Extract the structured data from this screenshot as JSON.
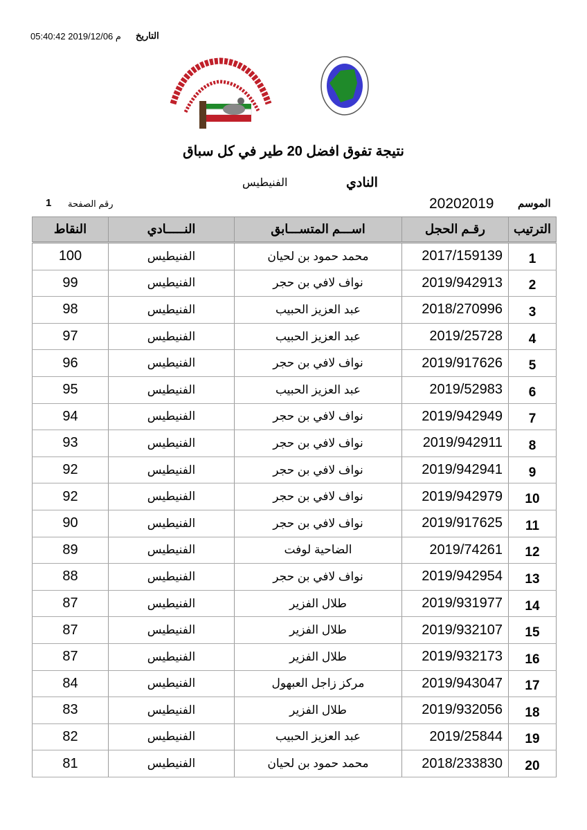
{
  "header": {
    "date_label": "التاريخ",
    "date_value": "05:40:42 2019/12/06 م",
    "title": "نتيجة تفوق  افضل 20  طير في كل سباق",
    "club_label": "النادي",
    "club_value": "الفنيطيس",
    "season_label": "الموسم",
    "season_value": "20202019",
    "page_label": "رقم الصفحة",
    "page_value": "1"
  },
  "logos": {
    "club_logo_text": "النادي الكويتي لسباق الحمام الزاجل - Kuwait Racing Pigeon Club",
    "federation_logo_text": "الإتحاد الكويتي لسباق حمام الزاجل - KUWAIT FEDERATION FOR RACING PIGEON",
    "colors": {
      "blue": "#3a3ad0",
      "green": "#1f8a2a",
      "red": "#c0202a"
    }
  },
  "table": {
    "columns": {
      "points": "النقاط",
      "club": "النـــــادي",
      "name": "اســـم المتســـابق",
      "ring": "رقـم الحجل",
      "rank": "الترتيب"
    },
    "rows": [
      {
        "rank": "1",
        "ring": "2017/159139",
        "name": "محمد حمود بن لحيان",
        "club": "الفنيطيس",
        "points": "100"
      },
      {
        "rank": "2",
        "ring": "2019/942913",
        "name": "نواف لافي بن حجر",
        "club": "الفنيطيس",
        "points": "99"
      },
      {
        "rank": "3",
        "ring": "2018/270996",
        "name": "عبد العزيز الحبيب",
        "club": "الفنيطيس",
        "points": "98"
      },
      {
        "rank": "4",
        "ring": "2019/25728",
        "name": "عبد العزيز الحبيب",
        "club": "الفنيطيس",
        "points": "97"
      },
      {
        "rank": "5",
        "ring": "2019/917626",
        "name": "نواف لافي بن حجر",
        "club": "الفنيطيس",
        "points": "96"
      },
      {
        "rank": "6",
        "ring": "2019/52983",
        "name": "عبد العزيز الحبيب",
        "club": "الفنيطيس",
        "points": "95"
      },
      {
        "rank": "7",
        "ring": "2019/942949",
        "name": "نواف لافي بن حجر",
        "club": "الفنيطيس",
        "points": "94"
      },
      {
        "rank": "8",
        "ring": "2019/942911",
        "name": "نواف لافي بن حجر",
        "club": "الفنيطيس",
        "points": "93"
      },
      {
        "rank": "9",
        "ring": "2019/942941",
        "name": "نواف لافي بن حجر",
        "club": "الفنيطيس",
        "points": "92"
      },
      {
        "rank": "10",
        "ring": "2019/942979",
        "name": "نواف لافي بن حجر",
        "club": "الفنيطيس",
        "points": "92"
      },
      {
        "rank": "11",
        "ring": "2019/917625",
        "name": "نواف لافي بن حجر",
        "club": "الفنيطيس",
        "points": "90"
      },
      {
        "rank": "12",
        "ring": "2019/74261",
        "name": "الضاحية لوفت",
        "club": "الفنيطيس",
        "points": "89"
      },
      {
        "rank": "13",
        "ring": "2019/942954",
        "name": "نواف لافي بن حجر",
        "club": "الفنيطيس",
        "points": "88"
      },
      {
        "rank": "14",
        "ring": "2019/931977",
        "name": "طلال الفزير",
        "club": "الفنيطيس",
        "points": "87"
      },
      {
        "rank": "15",
        "ring": "2019/932107",
        "name": "طلال الفزير",
        "club": "الفنيطيس",
        "points": "87"
      },
      {
        "rank": "16",
        "ring": "2019/932173",
        "name": "طلال الفزير",
        "club": "الفنيطيس",
        "points": "87"
      },
      {
        "rank": "17",
        "ring": "2019/943047",
        "name": "مركز زاجل العبهول",
        "club": "الفنيطيس",
        "points": "84"
      },
      {
        "rank": "18",
        "ring": "2019/932056",
        "name": "طلال الفزير",
        "club": "الفنيطيس",
        "points": "83"
      },
      {
        "rank": "19",
        "ring": "2019/25844",
        "name": "عبد العزيز الحبيب",
        "club": "الفنيطيس",
        "points": "82"
      },
      {
        "rank": "20",
        "ring": "2018/233830",
        "name": "محمد حمود بن لحيان",
        "club": "الفنيطيس",
        "points": "81"
      }
    ]
  }
}
